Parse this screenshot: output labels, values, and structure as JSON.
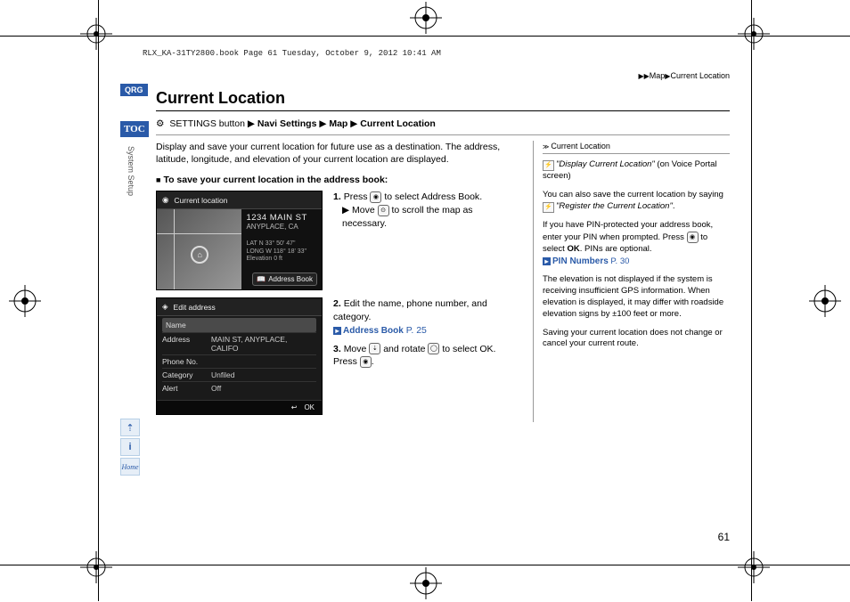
{
  "header_strip": "RLX_KA-31TY2800.book  Page 61  Tuesday, October 9, 2012  10:41 AM",
  "breadcrumb": {
    "seg1": "Map",
    "seg2": "Current Location"
  },
  "badges": {
    "qrg": "QRG",
    "toc": "TOC"
  },
  "side_label": "System Setup",
  "side_btns": {
    "voice": "⇡",
    "info": "i",
    "home": "Home"
  },
  "title": "Current Location",
  "path": {
    "icon": "⚙",
    "pre": "SETTINGS button",
    "seg1": "Navi Settings",
    "seg2": "Map",
    "seg3": "Current Location"
  },
  "intro": "Display and save your current location for future use as a destination. The address, latitude, longitude, and elevation of your current location are displayed.",
  "subhead": "To save your current location in the address book:",
  "shot1": {
    "header_icon": "◉",
    "header_text": "Current location",
    "addr_main": "1234 MAIN ST",
    "addr_sub": "ANYPLACE, CA",
    "lat": "LAT   N 33° 50' 47\"",
    "long": "LONG  W 118° 18' 33\"",
    "elev": "Elevation  0 ft",
    "ab_btn": "Address Book",
    "ab_icon": "📖"
  },
  "shot2": {
    "header_icon": "◈",
    "header_text": "Edit address",
    "rows": [
      {
        "label": "Name",
        "value": ""
      },
      {
        "label": "Address",
        "value": "MAIN ST, ANYPLACE, CALIFO"
      },
      {
        "label": "Phone No.",
        "value": ""
      },
      {
        "label": "Category",
        "value": "Unfiled"
      },
      {
        "label": "Alert",
        "value": "Off"
      }
    ],
    "footer_back": "↩",
    "footer_ok": "OK"
  },
  "steps": {
    "s1a": "Press ",
    "s1b": " to select ",
    "s1c": "Address Book",
    "s1d": ".",
    "s1_sub_a": "Move ",
    "s1_sub_b": " to scroll the map as necessary.",
    "s2": "Edit the name, phone number, and category.",
    "s2_link": "Address Book",
    "s2_page": " P. 25",
    "s3a": "Move ",
    "s3b": " and rotate ",
    "s3c": " to select ",
    "s3d": "OK",
    "s3e": ". Press ",
    "s3f": "."
  },
  "icons": {
    "press": "◉",
    "move": "⊙",
    "rotate": "◯",
    "stick": "⇣"
  },
  "sidebar": {
    "head": "Current Location",
    "p1a": "\"Display Current Location\"",
    "p1b": " (on Voice Portal screen)",
    "p2a": "You can also save the current location by saying ",
    "p2b": "\"Register the Current Location\"",
    "p2c": ".",
    "p3a": "If you have PIN-protected your address book, enter your PIN when prompted. Press ",
    "p3b": " to select ",
    "p3c": "OK",
    "p3d": ". PINs are optional.",
    "p3_link": "PIN Numbers",
    "p3_page": " P. 30",
    "p4": "The elevation is not displayed if the system is receiving insufficient GPS information. When elevation is displayed, it may differ with roadside elevation signs by ±100 feet or more.",
    "p5": "Saving your current location does not change or cancel your current route."
  },
  "page_num": "61"
}
